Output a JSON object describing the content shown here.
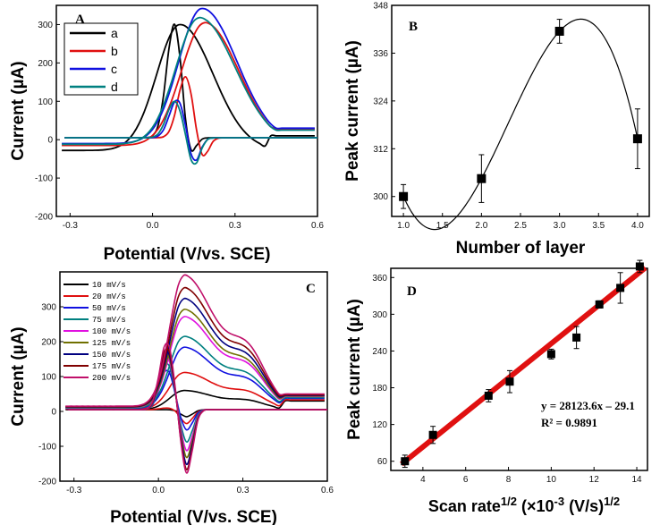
{
  "chart_data": [
    {
      "panel": "A",
      "type": "line",
      "xlabel": "Potential (V/vs. SCE)",
      "ylabel": "Current (µA)",
      "xlim": [
        -0.35,
        0.6
      ],
      "ylim": [
        -200,
        350
      ],
      "xticks": [
        -0.3,
        0.0,
        0.3,
        0.6
      ],
      "xtick_labels": [
        "-0.3",
        "0.0",
        "0.3",
        "0.6"
      ],
      "yticks": [
        -200,
        -100,
        0,
        100,
        200,
        300
      ],
      "ytick_labels": [
        "-200",
        "-100",
        "0",
        "100",
        "200",
        "300"
      ],
      "legend": [
        "a",
        "b",
        "c",
        "d"
      ],
      "series": [
        {
          "name": "a",
          "color": "#000000",
          "epa": 0.08,
          "ipa": 300,
          "epc": 0.13,
          "ipc": -70,
          "e_cap": 0.28,
          "ox_peak": 0.1,
          "base": -28,
          "tail_ret": 10,
          "width": 0.13
        },
        {
          "name": "b",
          "color": "#e01010",
          "epa": 0.12,
          "ipa": 160,
          "epc": 0.18,
          "ipc": -60,
          "e_cap": 0.35,
          "ox_peak": 0.19,
          "base": -15,
          "tail_ret": 28,
          "width": 0.14
        },
        {
          "name": "c",
          "color": "#1010e0",
          "epa": 0.09,
          "ipa": 100,
          "epc": 0.15,
          "ipc": -70,
          "e_cap": 0.38,
          "ox_peak": 0.18,
          "base": -10,
          "tail_ret": 30,
          "width": 0.15
        },
        {
          "name": "d",
          "color": "#008080",
          "epa": 0.08,
          "ipa": 95,
          "epc": 0.15,
          "ipc": -75,
          "e_cap": 0.36,
          "ox_peak": 0.17,
          "base": -12,
          "tail_ret": 25,
          "width": 0.15
        }
      ],
      "ox_max": [
        300,
        305,
        342,
        318
      ]
    },
    {
      "panel": "B",
      "type": "scatter",
      "xlabel": "Number of layer",
      "ylabel": "Peak current (µA)",
      "xlim": [
        0.85,
        4.15
      ],
      "ylim": [
        295,
        348
      ],
      "xticks": [
        1.0,
        1.5,
        2.0,
        2.5,
        3.0,
        3.5,
        4.0
      ],
      "xtick_labels": [
        "1.0",
        "1.5",
        "2.0",
        "2.5",
        "3.0",
        "3.5",
        "4.0"
      ],
      "yticks": [
        300,
        312,
        324,
        336,
        348
      ],
      "ytick_labels": [
        "300",
        "312",
        "324",
        "336",
        "348"
      ],
      "x": [
        1,
        2,
        3,
        4
      ],
      "y": [
        300,
        304.5,
        341.5,
        314.5
      ],
      "err": [
        3,
        6,
        3,
        7.5
      ],
      "fit": "spline"
    },
    {
      "panel": "C",
      "type": "line",
      "xlabel": "Potential (V/vs. SCE)",
      "ylabel": "Current (µA)",
      "xlim": [
        -0.35,
        0.6
      ],
      "ylim": [
        -200,
        400
      ],
      "xticks": [
        -0.3,
        0.0,
        0.3,
        0.6
      ],
      "xtick_labels": [
        "-0.3",
        "0.0",
        "0.3",
        "0.6"
      ],
      "yticks": [
        -200,
        -100,
        0,
        100,
        200,
        300
      ],
      "ytick_labels": [
        "-200",
        "-100",
        "0",
        "100",
        "200",
        "300"
      ],
      "legend": [
        "10  mV/s",
        "20  mV/s",
        "50  mV/s",
        "75  mV/s",
        "100  mV/s",
        "125  mV/s",
        "150  mV/s",
        "175  mV/s",
        "200  mV/s"
      ],
      "series": [
        {
          "name": "10 mV/s",
          "color": "#000000",
          "ox_peak": 60,
          "red_peak": 0,
          "red_dip": -20
        },
        {
          "name": "20 mV/s",
          "color": "#e01010",
          "ox_peak": 110,
          "red_peak": 5,
          "red_dip": -40
        },
        {
          "name": "50 mV/s",
          "color": "#1010e0",
          "ox_peak": 180,
          "red_peak": 115,
          "red_dip": -60
        },
        {
          "name": "75 mV/s",
          "color": "#008080",
          "ox_peak": 210,
          "red_peak": 135,
          "red_dip": -95
        },
        {
          "name": "100 mV/s",
          "color": "#e010e0",
          "ox_peak": 265,
          "red_peak": 150,
          "red_dip": -120
        },
        {
          "name": "125 mV/s",
          "color": "#707000",
          "ox_peak": 285,
          "red_peak": 160,
          "red_dip": -140
        },
        {
          "name": "150 mV/s",
          "color": "#000080",
          "ox_peak": 315,
          "red_peak": 170,
          "red_dip": -160
        },
        {
          "name": "175 mV/s",
          "color": "#800000",
          "ox_peak": 345,
          "red_peak": 180,
          "red_dip": -175
        },
        {
          "name": "200 mV/s",
          "color": "#c0106a",
          "ox_peak": 380,
          "red_peak": 195,
          "red_dip": -185
        }
      ]
    },
    {
      "panel": "D",
      "type": "scatter",
      "xlabel": "Scan rate",
      "xlabel_sup": "1/2",
      "xlabel_mid": " (×10",
      "xlabel_sup2": "-3",
      "xlabel_end": " (V/s)",
      "xlabel_sup3": "1/2",
      "ylabel": "Peak current (µA)",
      "xlim": [
        2.5,
        14.5
      ],
      "ylim": [
        45,
        375
      ],
      "xticks": [
        4,
        6,
        8,
        10,
        12,
        14
      ],
      "xtick_labels": [
        "4",
        "6",
        "8",
        "10",
        "12",
        "14"
      ],
      "yticks": [
        60,
        120,
        180,
        240,
        300,
        360
      ],
      "ytick_labels": [
        "60",
        "120",
        "180",
        "240",
        "300",
        "360"
      ],
      "x": [
        3.16,
        4.47,
        7.07,
        8.06,
        10.0,
        11.18,
        12.25,
        13.23,
        14.14
      ],
      "y": [
        60,
        103,
        167,
        190,
        235,
        262,
        316,
        343,
        378
      ],
      "err": [
        10,
        14,
        10,
        18,
        8,
        18,
        6,
        25,
        10
      ],
      "fit_line": {
        "slope": 28.1236,
        "intercept": -29.1,
        "color": "#e01010"
      },
      "equation": "y = 28123.6x – 29.1",
      "r2_label": "R² = 0.9891"
    }
  ],
  "panel_letters": [
    "A",
    "B",
    "C",
    "D"
  ]
}
